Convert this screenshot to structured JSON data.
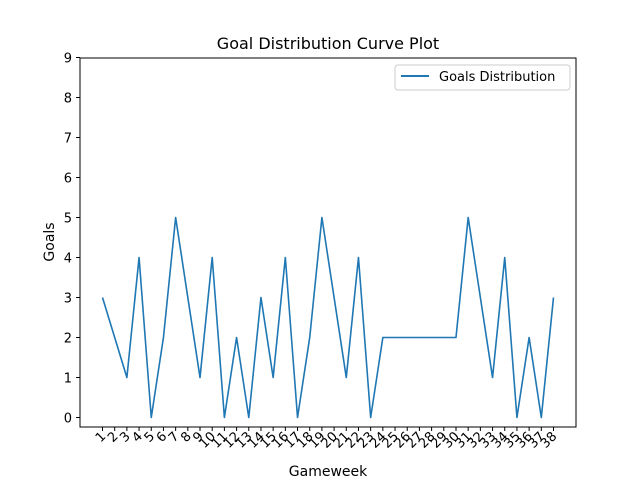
{
  "chart_data": {
    "type": "line",
    "title": "Goal Distribution Curve Plot",
    "xlabel": "Gameweek",
    "ylabel": "Goals",
    "x": [
      "1",
      "2",
      "3",
      "4",
      "5",
      "6",
      "7",
      "8",
      "9",
      "10",
      "11",
      "12",
      "13",
      "14",
      "15",
      "16",
      "17",
      "18",
      "19",
      "20",
      "21",
      "22",
      "23",
      "24",
      "25",
      "26",
      "27",
      "28",
      "29",
      "30",
      "31",
      "32",
      "33",
      "34",
      "35",
      "36",
      "37",
      "38"
    ],
    "series": [
      {
        "name": "Goals Distribution",
        "values": [
          3,
          2,
          1,
          4,
          0,
          2,
          5,
          3,
          1,
          4,
          0,
          2,
          0,
          3,
          1,
          4,
          0,
          2,
          5,
          3,
          1,
          4,
          0,
          2,
          2,
          2,
          2,
          2,
          2,
          2,
          5,
          3,
          1,
          4,
          0,
          2,
          0,
          3
        ]
      }
    ],
    "ylim": [
      0,
      9
    ],
    "yticks": [
      "0",
      "1",
      "2",
      "3",
      "4",
      "5",
      "6",
      "7",
      "8",
      "9"
    ],
    "legend_position": "top-right",
    "grid": false,
    "line_color": "#1f77b4"
  }
}
